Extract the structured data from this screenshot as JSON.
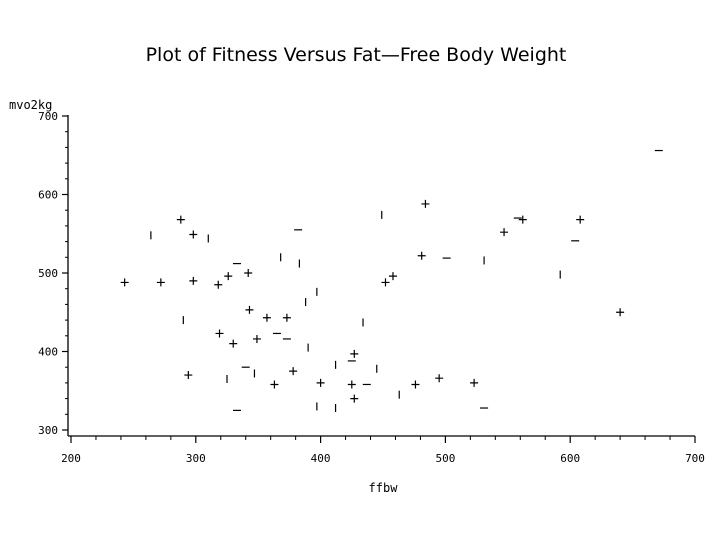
{
  "chart_data": {
    "type": "scatter",
    "title": "Plot of Fitness Versus Fat—Free Body Weight",
    "xlabel": "ffbw",
    "ylabel": "mvo2kg",
    "xlim": [
      200,
      700
    ],
    "ylim": [
      300,
      700
    ],
    "xticks": [
      "200",
      "300",
      "400",
      "500",
      "600",
      "700"
    ],
    "yticks": [
      "300",
      "400",
      "500",
      "600",
      "700"
    ],
    "grid": false,
    "legend": "none",
    "points": [
      {
        "x": 243,
        "y": 488,
        "marker": "+"
      },
      {
        "x": 272,
        "y": 488,
        "marker": "+"
      },
      {
        "x": 288,
        "y": 568,
        "marker": "+"
      },
      {
        "x": 298,
        "y": 549,
        "marker": "+"
      },
      {
        "x": 298,
        "y": 490,
        "marker": "+"
      },
      {
        "x": 294,
        "y": 370,
        "marker": "+"
      },
      {
        "x": 318,
        "y": 485,
        "marker": "+"
      },
      {
        "x": 326,
        "y": 496,
        "marker": "+"
      },
      {
        "x": 342,
        "y": 500,
        "marker": "+"
      },
      {
        "x": 319,
        "y": 423,
        "marker": "+"
      },
      {
        "x": 330,
        "y": 410,
        "marker": "+"
      },
      {
        "x": 343,
        "y": 453,
        "marker": "+"
      },
      {
        "x": 349,
        "y": 416,
        "marker": "+"
      },
      {
        "x": 357,
        "y": 443,
        "marker": "+"
      },
      {
        "x": 373,
        "y": 443,
        "marker": "+"
      },
      {
        "x": 363,
        "y": 358,
        "marker": "+"
      },
      {
        "x": 378,
        "y": 375,
        "marker": "+"
      },
      {
        "x": 400,
        "y": 360,
        "marker": "+"
      },
      {
        "x": 427,
        "y": 397,
        "marker": "+"
      },
      {
        "x": 425,
        "y": 358,
        "marker": "+"
      },
      {
        "x": 427,
        "y": 340,
        "marker": "+"
      },
      {
        "x": 452,
        "y": 488,
        "marker": "+"
      },
      {
        "x": 458,
        "y": 496,
        "marker": "+"
      },
      {
        "x": 484,
        "y": 588,
        "marker": "+"
      },
      {
        "x": 481,
        "y": 522,
        "marker": "+"
      },
      {
        "x": 476,
        "y": 358,
        "marker": "+"
      },
      {
        "x": 495,
        "y": 366,
        "marker": "+"
      },
      {
        "x": 523,
        "y": 360,
        "marker": "+"
      },
      {
        "x": 547,
        "y": 552,
        "marker": "+"
      },
      {
        "x": 562,
        "y": 568,
        "marker": "+"
      },
      {
        "x": 608,
        "y": 568,
        "marker": "+"
      },
      {
        "x": 640,
        "y": 450,
        "marker": "+"
      },
      {
        "x": 264,
        "y": 548,
        "marker": "|"
      },
      {
        "x": 290,
        "y": 440,
        "marker": "|"
      },
      {
        "x": 310,
        "y": 544,
        "marker": "|"
      },
      {
        "x": 325,
        "y": 365,
        "marker": "|"
      },
      {
        "x": 347,
        "y": 372,
        "marker": "|"
      },
      {
        "x": 368,
        "y": 520,
        "marker": "|"
      },
      {
        "x": 383,
        "y": 512,
        "marker": "|"
      },
      {
        "x": 388,
        "y": 463,
        "marker": "|"
      },
      {
        "x": 397,
        "y": 476,
        "marker": "|"
      },
      {
        "x": 390,
        "y": 405,
        "marker": "|"
      },
      {
        "x": 397,
        "y": 330,
        "marker": "|"
      },
      {
        "x": 412,
        "y": 328,
        "marker": "|"
      },
      {
        "x": 412,
        "y": 383,
        "marker": "|"
      },
      {
        "x": 434,
        "y": 437,
        "marker": "|"
      },
      {
        "x": 445,
        "y": 378,
        "marker": "|"
      },
      {
        "x": 449,
        "y": 574,
        "marker": "|"
      },
      {
        "x": 463,
        "y": 345,
        "marker": "|"
      },
      {
        "x": 531,
        "y": 516,
        "marker": "|"
      },
      {
        "x": 592,
        "y": 498,
        "marker": "|"
      },
      {
        "x": 333,
        "y": 512,
        "marker": "—"
      },
      {
        "x": 333,
        "y": 325,
        "marker": "—"
      },
      {
        "x": 340,
        "y": 380,
        "marker": "—"
      },
      {
        "x": 365,
        "y": 423,
        "marker": "—"
      },
      {
        "x": 373,
        "y": 416,
        "marker": "—"
      },
      {
        "x": 382,
        "y": 555,
        "marker": "—"
      },
      {
        "x": 425,
        "y": 388,
        "marker": "—"
      },
      {
        "x": 437,
        "y": 358,
        "marker": "—"
      },
      {
        "x": 501,
        "y": 519,
        "marker": "—"
      },
      {
        "x": 531,
        "y": 328,
        "marker": "—"
      },
      {
        "x": 558,
        "y": 570,
        "marker": "—"
      },
      {
        "x": 604,
        "y": 541,
        "marker": "—"
      },
      {
        "x": 671,
        "y": 656,
        "marker": "—"
      }
    ]
  }
}
